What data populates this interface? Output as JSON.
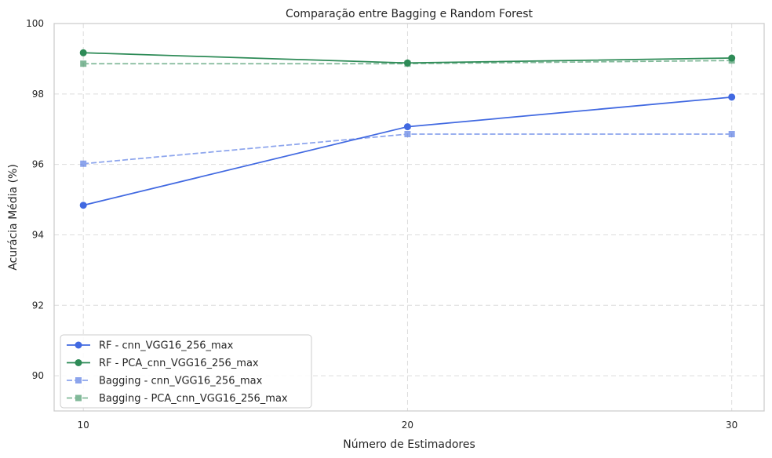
{
  "chart_data": {
    "type": "line",
    "title": "Comparação entre Bagging e Random Forest",
    "xlabel": "Número de Estimadores",
    "ylabel": "Acurácia Média (%)",
    "x": [
      10,
      20,
      30
    ],
    "xticks": [
      "10",
      "20",
      "30"
    ],
    "yticks": [
      "90",
      "92",
      "94",
      "96",
      "98",
      "100"
    ],
    "xlim": [
      9.1,
      31.0
    ],
    "ylim": [
      89.0,
      100.0
    ],
    "grid": true,
    "legend_position": "lower-left",
    "series": [
      {
        "name": "RF - cnn_VGG16_256_max",
        "values": [
          94.84,
          97.07,
          97.91
        ],
        "color": "#4169e1",
        "style": "solid",
        "marker": "circle",
        "opacity": 1.0
      },
      {
        "name": "RF - PCA_cnn_VGG16_256_max",
        "values": [
          99.17,
          98.88,
          99.02
        ],
        "color": "#2e8b57",
        "style": "solid",
        "marker": "circle",
        "opacity": 1.0
      },
      {
        "name": "Bagging - cnn_VGG16_256_max",
        "values": [
          96.02,
          96.86,
          96.86
        ],
        "color": "#4169e1",
        "style": "dashed",
        "marker": "square",
        "opacity": 0.6
      },
      {
        "name": "Bagging - PCA_cnn_VGG16_256_max",
        "values": [
          98.86,
          98.86,
          98.95
        ],
        "color": "#2e8b57",
        "style": "dashed",
        "marker": "square",
        "opacity": 0.6
      }
    ]
  }
}
